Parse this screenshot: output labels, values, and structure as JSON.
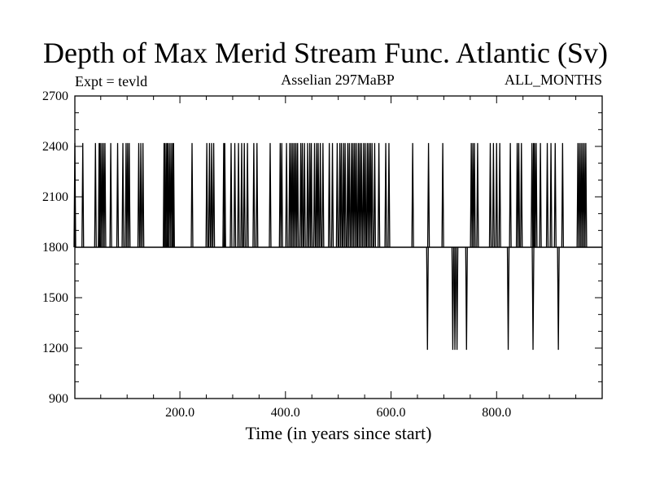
{
  "chart_data": {
    "type": "line",
    "title": "Depth of Max Merid Stream Func. Atlantic (Sv)",
    "left_label": "Expt = tevld",
    "center_label": "Asselian 297MaBP",
    "right_label": "ALL_MONTHS",
    "xlabel": "Time (in years since start)",
    "ylabel": "",
    "xlim": [
      1,
      1000
    ],
    "ylim": [
      900,
      2700
    ],
    "xticks": [
      200,
      400,
      600,
      800
    ],
    "xtick_labels": [
      "200.0",
      "400.0",
      "600.0",
      "800.0"
    ],
    "yticks": [
      900,
      1200,
      1500,
      1800,
      2100,
      2400,
      2700
    ],
    "ytick_labels": [
      "900",
      "1200",
      "1500",
      "1800",
      "2100",
      "2400",
      "2700"
    ],
    "baseline": 1800,
    "series": [
      {
        "baseline": 1800,
        "spike_value_high": 2420,
        "spike_value_low": 1190,
        "spikes_high": [
          1,
          16,
          40,
          47,
          49,
          52,
          55,
          58,
          69,
          82,
          92,
          98,
          101,
          104,
          122,
          126,
          130,
          170,
          172,
          175,
          177,
          180,
          183,
          186,
          188,
          223,
          251,
          256,
          260,
          264,
          283,
          285,
          297,
          304,
          311,
          317,
          322,
          328,
          340,
          346,
          371,
          390,
          393,
          402,
          408,
          411,
          414,
          417,
          420,
          423,
          429,
          432,
          436,
          442,
          446,
          449,
          455,
          459,
          462,
          466,
          471,
          483,
          489,
          498,
          503,
          506,
          510,
          513,
          518,
          521,
          525,
          528,
          531,
          534,
          538,
          541,
          544,
          548,
          551,
          555,
          558,
          561,
          564,
          569,
          577,
          590,
          596,
          641,
          671,
          698,
          752,
          755,
          758,
          764,
          788,
          794,
          800,
          806,
          826,
          839,
          842,
          847,
          867,
          870,
          872,
          875,
          883,
          896,
          903,
          911,
          925,
          954,
          957,
          960,
          963,
          966,
          969
        ],
        "spikes_low": [
          669,
          717,
          721,
          725,
          743,
          822,
          869,
          917
        ]
      }
    ]
  }
}
